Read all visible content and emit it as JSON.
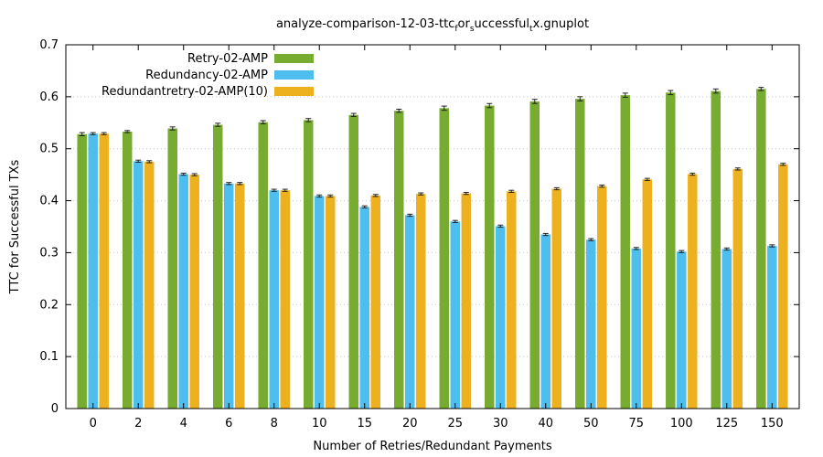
{
  "chart_data": {
    "type": "bar",
    "title": "analyze-comparison-12-03-ttcforsuccessfultx.gnuplot",
    "title_parts": {
      "t1": "analyze-comparison-12-03-ttc",
      "s1": "f",
      "t2": "or",
      "s2": "s",
      "t3": "uccessful",
      "s3": "t",
      "t4": "x.gnuplot"
    },
    "xlabel": "Number of Retries/Redundant Payments",
    "ylabel": "TTC for Successful TXs",
    "ylim": [
      0,
      0.7
    ],
    "yticks": [
      "0",
      "0.1",
      "0.2",
      "0.3",
      "0.4",
      "0.5",
      "0.6",
      "0.7"
    ],
    "categories": [
      "0",
      "2",
      "4",
      "6",
      "8",
      "10",
      "15",
      "20",
      "25",
      "30",
      "40",
      "50",
      "75",
      "100",
      "125",
      "150"
    ],
    "legend_position": "top-left",
    "grid": true,
    "series": [
      {
        "name": "Retry-02-AMP",
        "color": "#77ac30",
        "values": [
          0.528,
          0.533,
          0.539,
          0.546,
          0.551,
          0.555,
          0.565,
          0.573,
          0.578,
          0.583,
          0.591,
          0.596,
          0.603,
          0.608,
          0.611,
          0.615
        ],
        "errors": [
          0.003,
          0.002,
          0.003,
          0.003,
          0.003,
          0.003,
          0.003,
          0.003,
          0.004,
          0.004,
          0.004,
          0.004,
          0.004,
          0.004,
          0.004,
          0.003
        ]
      },
      {
        "name": "Redundancy-02-AMP",
        "color": "#4dbeee",
        "values": [
          0.529,
          0.476,
          0.451,
          0.433,
          0.42,
          0.409,
          0.388,
          0.372,
          0.36,
          0.351,
          0.335,
          0.325,
          0.308,
          0.302,
          0.307,
          0.313
        ],
        "errors": [
          0.002,
          0.002,
          0.002,
          0.002,
          0.002,
          0.002,
          0.002,
          0.002,
          0.002,
          0.002,
          0.002,
          0.002,
          0.002,
          0.002,
          0.002,
          0.002
        ]
      },
      {
        "name": "Redundantretry-02-AMP(10)",
        "color": "#edb120",
        "values": [
          0.529,
          0.475,
          0.45,
          0.433,
          0.42,
          0.409,
          0.41,
          0.413,
          0.414,
          0.418,
          0.423,
          0.428,
          0.441,
          0.451,
          0.461,
          0.47
        ],
        "errors": [
          0.002,
          0.002,
          0.002,
          0.002,
          0.002,
          0.002,
          0.002,
          0.002,
          0.002,
          0.002,
          0.002,
          0.002,
          0.002,
          0.002,
          0.002,
          0.002
        ]
      }
    ]
  }
}
